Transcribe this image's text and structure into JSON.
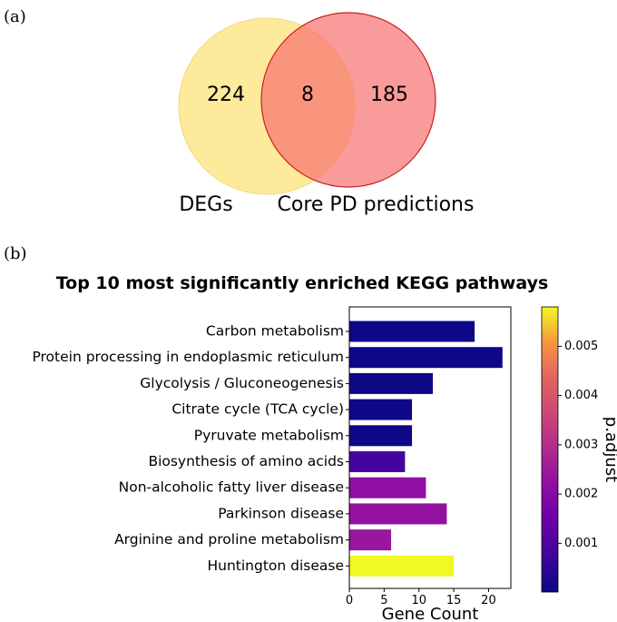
{
  "panel_a": {
    "label": "(a)",
    "venn": {
      "left_set": "DEGs",
      "right_set": "Core PD predictions",
      "left_only": "224",
      "overlap": "8",
      "right_only": "185",
      "colors": {
        "left": "#fde68a",
        "right": "#f87171",
        "overlap": "#f79a58"
      }
    }
  },
  "panel_b": {
    "label": "(b)"
  },
  "chart_data": {
    "type": "bar",
    "orientation": "horizontal",
    "title": "Top 10 most significantly enriched KEGG pathways",
    "xlabel": "Gene Count",
    "ylabel": "",
    "xlim": [
      0,
      23.2
    ],
    "xticks": [
      0,
      5,
      10,
      15,
      20
    ],
    "categories": [
      "Carbon metabolism",
      "Protein processing in endoplasmic reticulum",
      "Glycolysis / Gluconeogenesis",
      "Citrate cycle (TCA cycle)",
      "Pyruvate metabolism",
      "Biosynthesis of amino acids",
      "Non-alcoholic fatty liver disease",
      "Parkinson disease",
      "Arginine and proline metabolism",
      "Huntington disease"
    ],
    "values": [
      18,
      22,
      12,
      9,
      9,
      8,
      11,
      14,
      6,
      15
    ],
    "p_adjust": [
      1e-05,
      1e-05,
      2e-05,
      3e-05,
      3e-05,
      0.0008,
      0.0022,
      0.0023,
      0.0024,
      0.0058
    ],
    "colorbar": {
      "label": "p.adjust",
      "range": [
        1e-05,
        0.0058
      ],
      "ticks": [
        "0.001",
        "0.002",
        "0.003",
        "0.004",
        "0.005"
      ],
      "tick_values": [
        0.001,
        0.002,
        0.003,
        0.004,
        0.005
      ],
      "colormap": "plasma"
    },
    "grid": false,
    "legend": "colorbar-right"
  }
}
